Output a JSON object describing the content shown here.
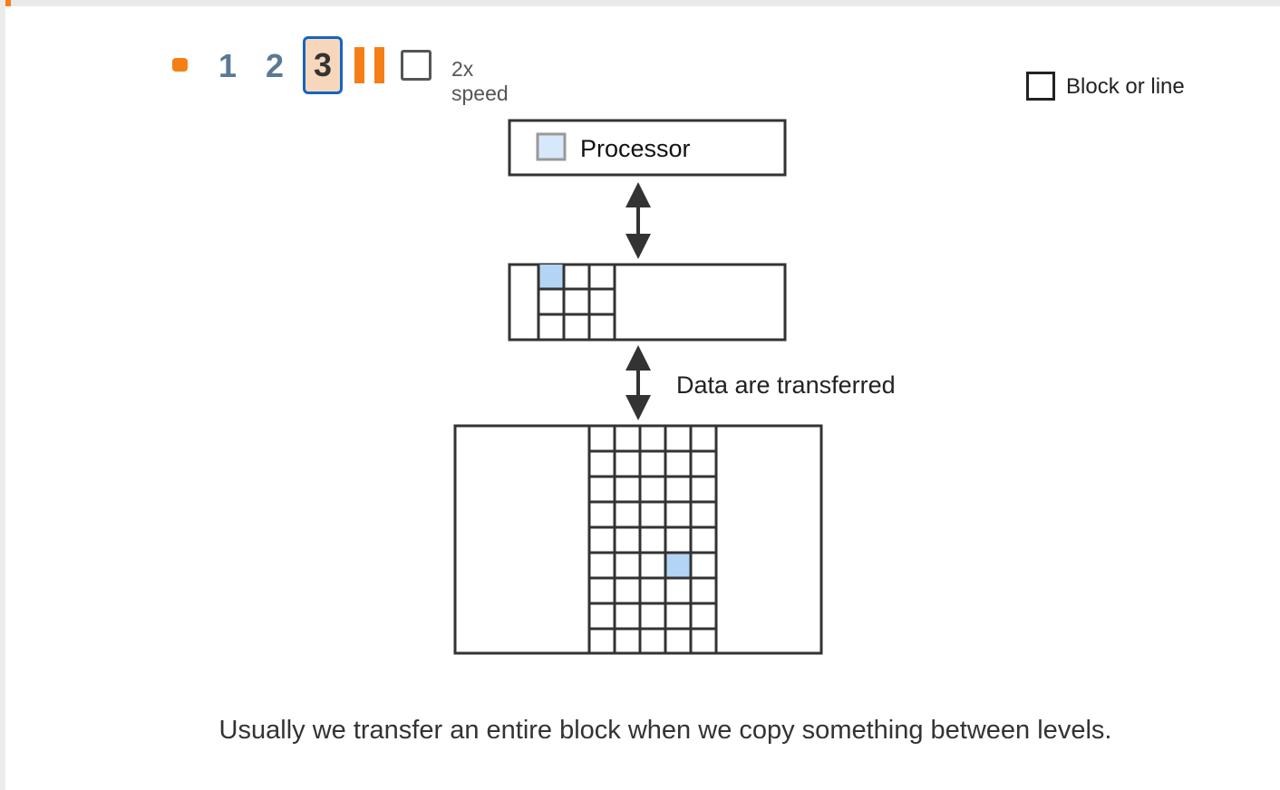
{
  "controls": {
    "steps": [
      "1",
      "2",
      "3"
    ],
    "active_step": "3",
    "speed_label": "2x speed",
    "speed_checked": false
  },
  "options": {
    "block_label": "Block or line",
    "block_checked": false
  },
  "diagram": {
    "processor_label": "Processor",
    "transfer_label": "Data are transferred",
    "colors": {
      "highlight": "#b3d4f5",
      "processor_cell": "#d7e8fa",
      "stroke": "#333333",
      "accent": "#f57f17",
      "active_border": "#1565c0"
    }
  },
  "caption": "Usually we transfer an entire block when we copy something between levels."
}
